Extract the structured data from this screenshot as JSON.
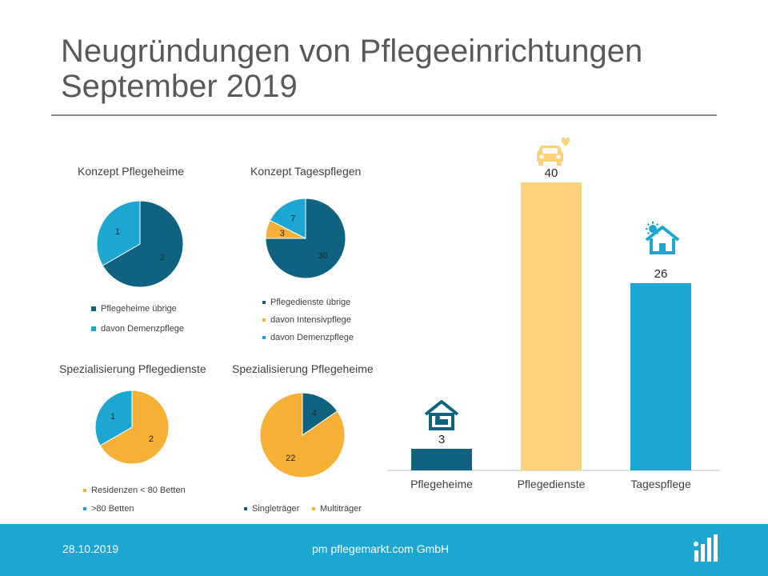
{
  "header": {
    "title_line1": "Neugründungen von Pflegeeinrichtungen",
    "title_line2": "September 2019"
  },
  "colors": {
    "dark_teal": "#0f6380",
    "light_blue": "#1ba7d2",
    "orange": "#f5b035",
    "light_orange": "#fcd37a",
    "footer_bg": "#1ba7d2"
  },
  "chart_data": [
    {
      "type": "pie",
      "title": "Konzept Pflegeheime",
      "slices": [
        {
          "label": "Pflegeheime übrige",
          "value": 2,
          "color": "#0f6380"
        },
        {
          "label": "davon Demenzpflege",
          "value": 1,
          "color": "#1ba7d2"
        }
      ]
    },
    {
      "type": "pie",
      "title": "Konzept Tagespflegen",
      "slices": [
        {
          "label": "Pflegedienste übrige",
          "value": 30,
          "color": "#0f6380"
        },
        {
          "label": "davon Intensivpflege",
          "value": 3,
          "color": "#f5b035"
        },
        {
          "label": "davon Demenzpflege",
          "value": 7,
          "color": "#1ba7d2"
        }
      ]
    },
    {
      "type": "pie",
      "title": "Spezialisierung Pflegedienste",
      "slices": [
        {
          "label": "Residenzen < 80 Betten",
          "value": 2,
          "color": "#f5b035"
        },
        {
          "label": ">80 Betten",
          "value": 1,
          "color": "#1ba7d2"
        }
      ]
    },
    {
      "type": "pie",
      "title": "Spezialisierung Pflegeheime",
      "slices": [
        {
          "label": "Singleträger",
          "value": 4,
          "color": "#0f6380"
        },
        {
          "label": "Multiträger",
          "value": 22,
          "color": "#f5b035"
        }
      ]
    },
    {
      "type": "bar",
      "categories": [
        "Pflegeheime",
        "Pflegedienste",
        "Tagespflege"
      ],
      "values": [
        3,
        40,
        26
      ],
      "colors": [
        "#0f6380",
        "#fcd37a",
        "#1ba7d2"
      ],
      "icons": [
        "bed-house-icon",
        "car-heart-icon",
        "sun-house-icon"
      ]
    }
  ],
  "footer": {
    "date": "28.10.2019",
    "company": "pm pflegemarkt.com GmbH"
  }
}
